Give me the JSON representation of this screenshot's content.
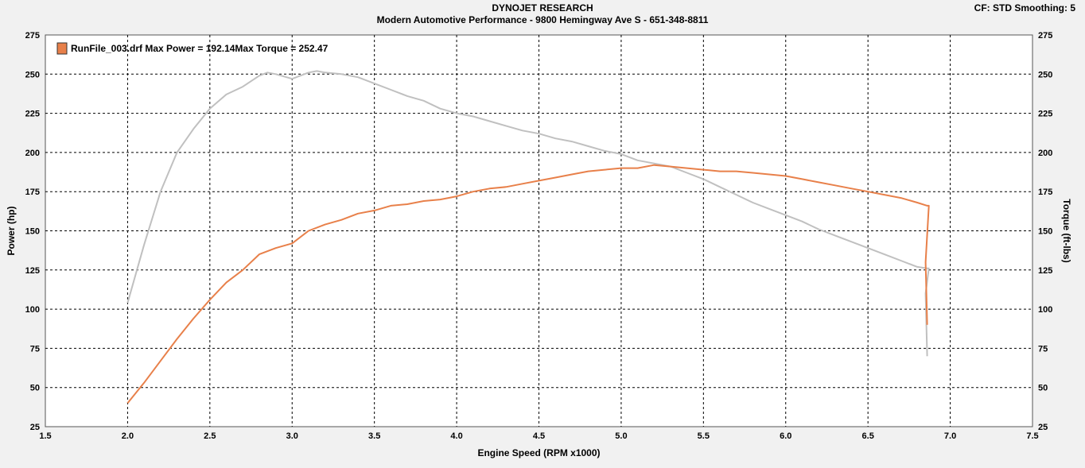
{
  "header": {
    "title": "DYNOJET RESEARCH",
    "subtitle": "Modern Automotive Performance - 9800 Hemingway Ave S - 651-348-8811",
    "correction": "CF: STD  Smoothing: 5"
  },
  "chart_data": {
    "type": "line",
    "xlabel": "Engine Speed (RPM x1000)",
    "ylabel": "Power (hp)",
    "y2label": "Torque (ft-lbs)",
    "xlim": [
      1.5,
      7.5
    ],
    "ylim": [
      25,
      275
    ],
    "y2lim": [
      25,
      275
    ],
    "xticks": [
      "1.5",
      "2.0",
      "2.5",
      "3.0",
      "3.5",
      "4.0",
      "4.5",
      "5.0",
      "5.5",
      "6.0",
      "6.5",
      "7.0",
      "7.5"
    ],
    "yticks": [
      "25",
      "50",
      "75",
      "100",
      "125",
      "150",
      "175",
      "200",
      "225",
      "250",
      "275"
    ],
    "grid": true,
    "legend": {
      "placement": "top-left",
      "text": "RunFile_003.drf Max Power = 192.14Max Torque = 252.47",
      "color": "#e8804a"
    },
    "series": [
      {
        "key": "power",
        "color": "#e8804a",
        "x": [
          2.0,
          2.1,
          2.2,
          2.3,
          2.4,
          2.5,
          2.6,
          2.7,
          2.8,
          2.9,
          3.0,
          3.1,
          3.2,
          3.3,
          3.4,
          3.5,
          3.6,
          3.7,
          3.8,
          3.9,
          4.0,
          4.1,
          4.2,
          4.3,
          4.4,
          4.5,
          4.6,
          4.7,
          4.8,
          4.9,
          5.0,
          5.1,
          5.2,
          5.3,
          5.4,
          5.5,
          5.6,
          5.7,
          5.8,
          5.9,
          6.0,
          6.1,
          6.2,
          6.3,
          6.4,
          6.5,
          6.6,
          6.7,
          6.8,
          6.86,
          6.87,
          6.85,
          6.86
        ],
        "y": [
          40,
          53,
          67,
          81,
          94,
          106,
          117,
          125,
          135,
          139,
          142,
          150,
          154,
          157,
          161,
          163,
          166,
          167,
          169,
          170,
          172,
          175,
          177,
          178,
          180,
          182,
          184,
          186,
          188,
          189,
          190,
          190,
          192,
          191,
          190,
          189,
          188,
          188,
          187,
          186,
          185,
          183,
          181,
          179,
          177,
          175,
          173,
          171,
          168,
          166,
          166,
          130,
          90
        ]
      },
      {
        "key": "torque",
        "color": "#c0c0c0",
        "x": [
          2.0,
          2.1,
          2.2,
          2.3,
          2.4,
          2.5,
          2.6,
          2.7,
          2.8,
          2.85,
          2.9,
          3.0,
          3.1,
          3.15,
          3.2,
          3.3,
          3.4,
          3.5,
          3.6,
          3.7,
          3.8,
          3.9,
          4.0,
          4.1,
          4.2,
          4.3,
          4.4,
          4.5,
          4.6,
          4.7,
          4.8,
          4.9,
          5.0,
          5.1,
          5.2,
          5.3,
          5.4,
          5.5,
          5.6,
          5.7,
          5.8,
          5.9,
          6.0,
          6.1,
          6.2,
          6.3,
          6.4,
          6.5,
          6.6,
          6.7,
          6.8,
          6.86,
          6.87,
          6.85,
          6.86
        ],
        "y": [
          104,
          141,
          175,
          200,
          215,
          228,
          237,
          242,
          249,
          251,
          250,
          247,
          251,
          252,
          251,
          250,
          248,
          244,
          240,
          236,
          233,
          228,
          225,
          223,
          220,
          217,
          214,
          212,
          209,
          207,
          204,
          201,
          199,
          195,
          193,
          191,
          187,
          183,
          178,
          173,
          168,
          164,
          160,
          156,
          151,
          147,
          143,
          139,
          135,
          131,
          127,
          126,
          126,
          110,
          70
        ]
      }
    ]
  }
}
